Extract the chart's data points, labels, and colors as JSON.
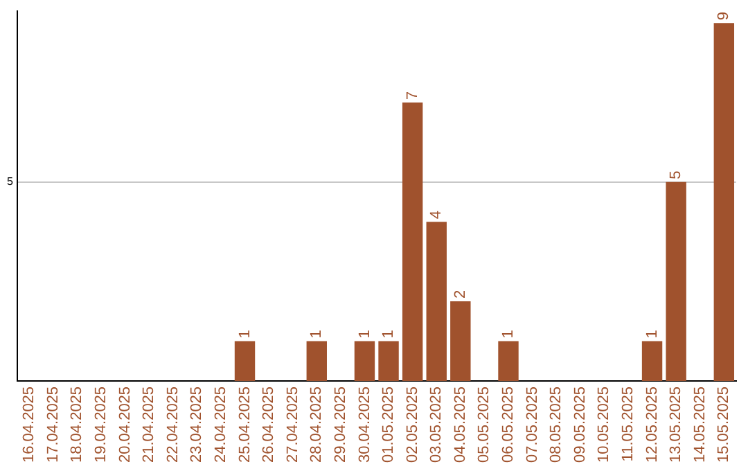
{
  "chart_data": {
    "type": "bar",
    "categories": [
      "16.04.2025",
      "17.04.2025",
      "18.04.2025",
      "19.04.2025",
      "20.04.2025",
      "21.04.2025",
      "22.04.2025",
      "23.04.2025",
      "24.04.2025",
      "25.04.2025",
      "26.04.2025",
      "27.04.2025",
      "28.04.2025",
      "29.04.2025",
      "30.04.2025",
      "01.05.2025",
      "02.05.2025",
      "03.05.2025",
      "04.05.2025",
      "05.05.2025",
      "06.05.2025",
      "07.05.2025",
      "08.05.2025",
      "09.05.2025",
      "10.05.2025",
      "11.05.2025",
      "12.05.2025",
      "13.05.2025",
      "14.05.2025",
      "15.05.2025"
    ],
    "values": [
      0,
      0,
      0,
      0,
      0,
      0,
      0,
      0,
      0,
      1,
      0,
      0,
      1,
      0,
      1,
      1,
      7,
      4,
      2,
      0,
      1,
      0,
      0,
      0,
      0,
      0,
      1,
      5,
      0,
      9
    ],
    "value_labels": [
      null,
      null,
      null,
      null,
      null,
      null,
      null,
      null,
      null,
      "1",
      null,
      null,
      "1",
      null,
      "1",
      "1",
      "7",
      "4",
      "2",
      null,
      "1",
      null,
      null,
      null,
      null,
      null,
      "1",
      "5",
      null,
      "9"
    ],
    "color": "#a0522d",
    "ylim": [
      0,
      9.3
    ],
    "yticks": [
      5
    ],
    "grid": "y",
    "legend": false
  }
}
